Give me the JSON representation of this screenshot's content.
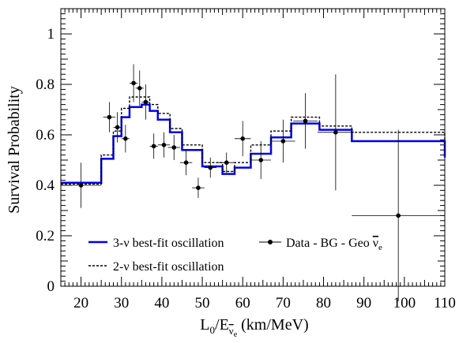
{
  "chart_data": {
    "type": "line",
    "title": "",
    "xlabel": {
      "main": "L",
      "sub1": "0",
      "mid": "/E",
      "sub2": "ν",
      "sub2sub": "e",
      "tail": " (km/MeV)"
    },
    "ylabel": "Survival Probability",
    "xlim": [
      15,
      110
    ],
    "ylim": [
      0,
      1.1
    ],
    "x_ticks": [
      20,
      30,
      40,
      50,
      60,
      70,
      80,
      90,
      100,
      110
    ],
    "y_ticks": [
      0,
      0.2,
      0.4,
      0.6,
      0.8,
      1
    ],
    "grid": false,
    "legend_placement": "bottom-left",
    "legend": {
      "three_nu": "3-ν best-fit oscillation",
      "two_nu": "2-ν best-fit oscillation",
      "data_prefix": "Data - BG - Geo ",
      "data_symbol": "ν",
      "data_symbol_sub": "e"
    },
    "series": [
      {
        "name": "3-ν best-fit oscillation",
        "style": "solid",
        "color": "#0000ee",
        "step_edges": [
          15,
          25,
          28,
          30,
          32,
          35,
          37,
          39,
          42,
          45,
          50,
          55,
          58,
          62,
          67,
          72,
          79,
          87,
          110
        ],
        "step_values": [
          0.41,
          0.505,
          0.595,
          0.67,
          0.71,
          0.72,
          0.695,
          0.66,
          0.61,
          0.54,
          0.475,
          0.445,
          0.47,
          0.525,
          0.59,
          0.645,
          0.62,
          0.575,
          0.51
        ]
      },
      {
        "name": "2-ν best-fit oscillation",
        "style": "dashed",
        "color": "#000000",
        "step_edges": [
          15,
          25,
          28,
          30,
          32,
          35,
          37,
          39,
          42,
          45,
          50,
          55,
          58,
          62,
          67,
          72,
          79,
          87,
          110
        ],
        "step_values": [
          0.405,
          0.52,
          0.615,
          0.705,
          0.75,
          0.75,
          0.72,
          0.685,
          0.625,
          0.56,
          0.49,
          0.455,
          0.49,
          0.56,
          0.615,
          0.67,
          0.635,
          0.61,
          0.52
        ]
      },
      {
        "name": "Data - BG - Geo ν̄e",
        "style": "points",
        "color": "#000000",
        "points": [
          {
            "x": 20.0,
            "y": 0.4,
            "xerr": 5.0,
            "yerr": 0.09
          },
          {
            "x": 27.0,
            "y": 0.67,
            "xerr": 1.5,
            "yerr": 0.06
          },
          {
            "x": 29.0,
            "y": 0.63,
            "xerr": 1.0,
            "yerr": 0.06
          },
          {
            "x": 31.0,
            "y": 0.585,
            "xerr": 1.0,
            "yerr": 0.055
          },
          {
            "x": 33.0,
            "y": 0.805,
            "xerr": 1.0,
            "yerr": 0.075
          },
          {
            "x": 34.5,
            "y": 0.785,
            "xerr": 1.0,
            "yerr": 0.07
          },
          {
            "x": 36.0,
            "y": 0.73,
            "xerr": 1.0,
            "yerr": 0.07
          },
          {
            "x": 38.0,
            "y": 0.555,
            "xerr": 1.0,
            "yerr": 0.05
          },
          {
            "x": 40.5,
            "y": 0.56,
            "xerr": 1.5,
            "yerr": 0.05
          },
          {
            "x": 43.0,
            "y": 0.55,
            "xerr": 1.5,
            "yerr": 0.05
          },
          {
            "x": 46.0,
            "y": 0.49,
            "xerr": 1.5,
            "yerr": 0.05
          },
          {
            "x": 49.0,
            "y": 0.39,
            "xerr": 1.5,
            "yerr": 0.04
          },
          {
            "x": 52.0,
            "y": 0.47,
            "xerr": 1.5,
            "yerr": 0.04
          },
          {
            "x": 56.0,
            "y": 0.49,
            "xerr": 2.0,
            "yerr": 0.04
          },
          {
            "x": 60.0,
            "y": 0.585,
            "xerr": 2.0,
            "yerr": 0.07
          },
          {
            "x": 64.5,
            "y": 0.5,
            "xerr": 2.5,
            "yerr": 0.075
          },
          {
            "x": 70.0,
            "y": 0.575,
            "xerr": 3.0,
            "yerr": 0.085
          },
          {
            "x": 75.5,
            "y": 0.655,
            "xerr": 3.0,
            "yerr": 0.11
          },
          {
            "x": 83.0,
            "y": 0.61,
            "xerr": 4.5,
            "yerr": 0.23
          },
          {
            "x": 98.5,
            "y": 0.28,
            "xerr": 11.5,
            "yerr": 0.34
          }
        ]
      }
    ]
  }
}
